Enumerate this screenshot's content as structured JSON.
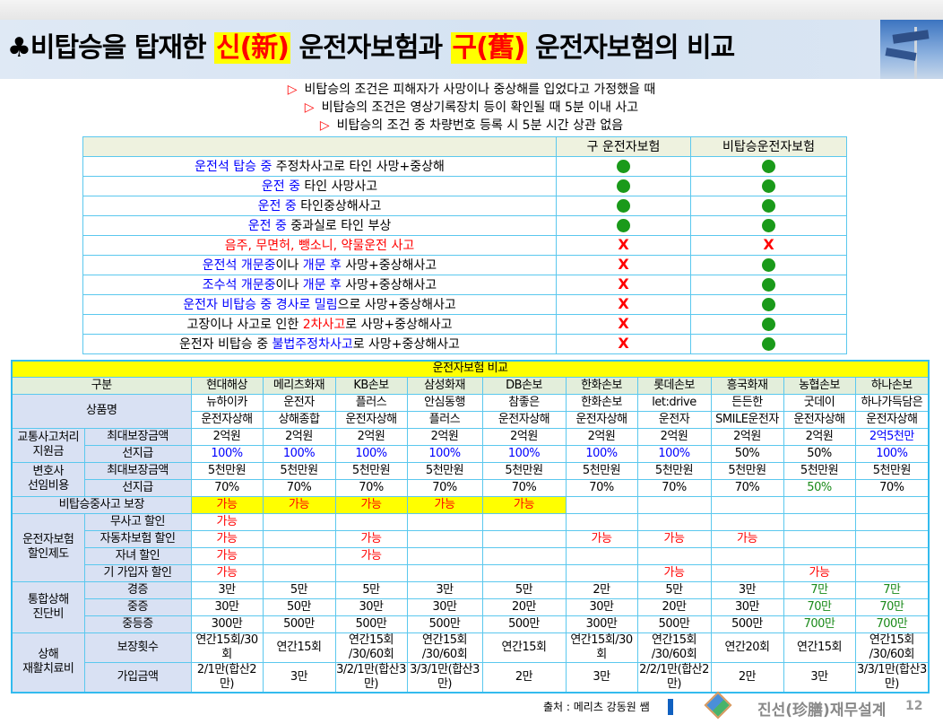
{
  "title": {
    "icon": "club-icon",
    "prefix": "♣비탑승을 탑재한 ",
    "new": "신(新)",
    "middle": " 운전자보험과 ",
    "old": "구(舊)",
    "suffix": " 운전자보험의 비교"
  },
  "conditions": [
    "비탑승의 조건은 피해자가 사망이나 중상해를 입었다고 가정했을 때",
    "비탑승의 조건은 영상기록장치 등이 확인될 때 5분 이내 사고",
    "비탑승의 조건 중 차량번호 등록 시 5분 시간 상관 없음"
  ],
  "colors": {
    "blue": "#0000ff",
    "red": "#ff0000",
    "black": "#000000",
    "green": "#1a8a1a",
    "yellow": "#ffff00",
    "border": "#5bc8ee"
  },
  "top_table": {
    "headers": [
      "",
      "구 운전자보험",
      "비탑승운전자보험"
    ],
    "rows": [
      {
        "segs": [
          [
            "운전석 탑승 중 ",
            "#0000ff"
          ],
          [
            "주정차사고로 타인 사망+중상해",
            "#000000"
          ]
        ],
        "old": "dot",
        "new": "dot"
      },
      {
        "segs": [
          [
            "운전 중 ",
            "#0000ff"
          ],
          [
            "타인 사망사고",
            "#000000"
          ]
        ],
        "old": "dot",
        "new": "dot"
      },
      {
        "segs": [
          [
            "운전 중 ",
            "#0000ff"
          ],
          [
            "타인중상해사고",
            "#000000"
          ]
        ],
        "old": "dot",
        "new": "dot"
      },
      {
        "segs": [
          [
            "운전 중 ",
            "#0000ff"
          ],
          [
            "중과실로 타인 부상",
            "#000000"
          ]
        ],
        "old": "dot",
        "new": "dot"
      },
      {
        "segs": [
          [
            "음주, 무면허, 뺑소니, 약물운전 사고",
            "#ff0000"
          ]
        ],
        "old": "X",
        "new": "X"
      },
      {
        "segs": [
          [
            "운전석 개문중",
            "#0000ff"
          ],
          [
            "이나 ",
            "#000000"
          ],
          [
            "개문 후 ",
            "#0000ff"
          ],
          [
            "사망+중상해사고",
            "#000000"
          ]
        ],
        "old": "X",
        "new": "dot"
      },
      {
        "segs": [
          [
            "조수석 개문중",
            "#0000ff"
          ],
          [
            "이나 ",
            "#000000"
          ],
          [
            "개문 후 ",
            "#0000ff"
          ],
          [
            "사망+중상해사고",
            "#000000"
          ]
        ],
        "old": "X",
        "new": "dot"
      },
      {
        "segs": [
          [
            "운전자 비탑승 중 경사로 밀림",
            "#0000ff"
          ],
          [
            "으로 사망+중상해사고",
            "#000000"
          ]
        ],
        "old": "X",
        "new": "dot"
      },
      {
        "segs": [
          [
            "고장이나 사고로 인한 ",
            "#000000"
          ],
          [
            "2차사고",
            "#ff0000"
          ],
          [
            "로 사망+중상해사고",
            "#000000"
          ]
        ],
        "old": "X",
        "new": "dot"
      },
      {
        "segs": [
          [
            "운전자 비탑승 중 ",
            "#000000"
          ],
          [
            "불법주정차사고",
            "#0000ff"
          ],
          [
            "로 사망+중상해사고",
            "#000000"
          ]
        ],
        "old": "X",
        "new": "dot"
      }
    ]
  },
  "bottom_table": {
    "title": "운전자보험 비교",
    "header_label": "구분",
    "companies": [
      "현대해상",
      "메리츠화재",
      "KB손보",
      "삼성화재",
      "DB손보",
      "한화손보",
      "롯데손보",
      "흥국화재",
      "농협손보",
      "하나손보"
    ],
    "product": {
      "label": "상품명",
      "line1": [
        "뉴하이카",
        "운전자",
        "플러스",
        "안심동행",
        "참좋은",
        "한화손보",
        "let:drive",
        "든든한",
        "굿데이",
        "하나가득담은"
      ],
      "line2": [
        "운전자상해",
        "상해종합",
        "운전자상해",
        "플러스",
        "운전자상해",
        "운전자상해",
        "운전자",
        "SMILE운전자",
        "운전자상해",
        "운전자상해"
      ]
    },
    "groups": [
      {
        "label": "교통사고처리\n지원금",
        "rows": [
          {
            "label": "최대보장금액",
            "cells": [
              "2억원",
              "2억원",
              "2억원",
              "2억원",
              "2억원",
              "2억원",
              "2억원",
              "2억원",
              "2억원",
              {
                "t": "2억5천만",
                "c": "#0000ff"
              }
            ]
          },
          {
            "label": "선지급",
            "cells": [
              {
                "t": "100%",
                "c": "#0000ff"
              },
              {
                "t": "100%",
                "c": "#0000ff"
              },
              {
                "t": "100%",
                "c": "#0000ff"
              },
              {
                "t": "100%",
                "c": "#0000ff"
              },
              {
                "t": "100%",
                "c": "#0000ff"
              },
              {
                "t": "100%",
                "c": "#0000ff"
              },
              {
                "t": "100%",
                "c": "#0000ff"
              },
              "50%",
              "50%",
              {
                "t": "100%",
                "c": "#0000ff"
              }
            ]
          }
        ]
      },
      {
        "label": "변호사\n선임비용",
        "rows": [
          {
            "label": "최대보장금액",
            "cells": [
              "5천만원",
              "5천만원",
              "5천만원",
              "5천만원",
              "5천만원",
              "5천만원",
              "5천만원",
              "5천만원",
              "5천만원",
              "5천만원"
            ]
          },
          {
            "label": "선지급",
            "cells": [
              "70%",
              "70%",
              "70%",
              "70%",
              "70%",
              "70%",
              "70%",
              "70%",
              {
                "t": "50%",
                "c": "#1a8a1a"
              },
              "70%"
            ]
          }
        ]
      },
      {
        "label": "비탑승중사고 보장",
        "rows": [
          {
            "cells": [
              {
                "t": "가능",
                "c": "#ff0000",
                "bg": "#ffff00"
              },
              {
                "t": "가능",
                "c": "#ff0000",
                "bg": "#ffff00"
              },
              {
                "t": "가능",
                "c": "#ff0000",
                "bg": "#ffff00"
              },
              {
                "t": "가능",
                "c": "#ff0000",
                "bg": "#ffff00"
              },
              {
                "t": "가능",
                "c": "#ff0000",
                "bg": "#ffff00"
              },
              "",
              "",
              "",
              "",
              ""
            ]
          }
        ]
      },
      {
        "label": "운전자보험\n할인제도",
        "rows": [
          {
            "label": "무사고 할인",
            "cells": [
              {
                "t": "가능",
                "c": "#ff0000"
              },
              "",
              "",
              "",
              "",
              "",
              "",
              "",
              "",
              ""
            ]
          },
          {
            "label": "자동차보험 할인",
            "cells": [
              {
                "t": "가능",
                "c": "#ff0000"
              },
              "",
              {
                "t": "가능",
                "c": "#ff0000"
              },
              "",
              "",
              {
                "t": "가능",
                "c": "#ff0000"
              },
              {
                "t": "가능",
                "c": "#ff0000"
              },
              {
                "t": "가능",
                "c": "#ff0000"
              },
              "",
              ""
            ]
          },
          {
            "label": "자녀 할인",
            "cells": [
              {
                "t": "가능",
                "c": "#ff0000"
              },
              "",
              {
                "t": "가능",
                "c": "#ff0000"
              },
              "",
              "",
              "",
              "",
              "",
              "",
              ""
            ]
          },
          {
            "label": "기 가입자 할인",
            "cells": [
              {
                "t": "가능",
                "c": "#ff0000"
              },
              "",
              "",
              "",
              "",
              "",
              {
                "t": "가능",
                "c": "#ff0000"
              },
              "",
              {
                "t": "가능",
                "c": "#ff0000"
              },
              ""
            ]
          }
        ]
      },
      {
        "label": "통합상해\n진단비",
        "rows": [
          {
            "label": "경증",
            "cells": [
              "3만",
              "5만",
              "5만",
              "3만",
              "5만",
              "2만",
              "5만",
              "3만",
              {
                "t": "7만",
                "c": "#1a8a1a"
              },
              {
                "t": "7만",
                "c": "#1a8a1a"
              }
            ]
          },
          {
            "label": "중증",
            "cells": [
              "30만",
              "50만",
              "30만",
              "30만",
              "20만",
              "30만",
              "20만",
              "30만",
              {
                "t": "70만",
                "c": "#1a8a1a"
              },
              {
                "t": "70만",
                "c": "#1a8a1a"
              }
            ]
          },
          {
            "label": "중등증",
            "cells": [
              "300만",
              "500만",
              "500만",
              "500만",
              "500만",
              "300만",
              "500만",
              "500만",
              {
                "t": "700만",
                "c": "#1a8a1a"
              },
              {
                "t": "700만",
                "c": "#1a8a1a"
              }
            ]
          }
        ]
      },
      {
        "label": "상해\n재활치료비",
        "rows": [
          {
            "label": "보장횟수",
            "cells": [
              "연간15회/30회",
              "연간15회",
              "연간15회\n/30/60회",
              "연간15회\n/30/60회",
              "연간15회",
              "연간15회/30회",
              "연간15회\n/30/60회",
              "연간20회",
              "연간15회",
              "연간15회\n/30/60회"
            ]
          },
          {
            "label": "가입금액",
            "cells": [
              "2/1만(합산2만)",
              "3만",
              "3/2/1만(합산3만)",
              "3/3/1만(합산3만)",
              "2만",
              "3만",
              "2/2/1만(합산2만)",
              "2만",
              "3만",
              "3/3/1만(합산3만)"
            ]
          }
        ]
      }
    ]
  },
  "footer": {
    "source": "출처 : 메리츠 강동원 쌤",
    "brand": "진선(珍膳)재무설계",
    "page": "12",
    "logo": "js-logo"
  }
}
